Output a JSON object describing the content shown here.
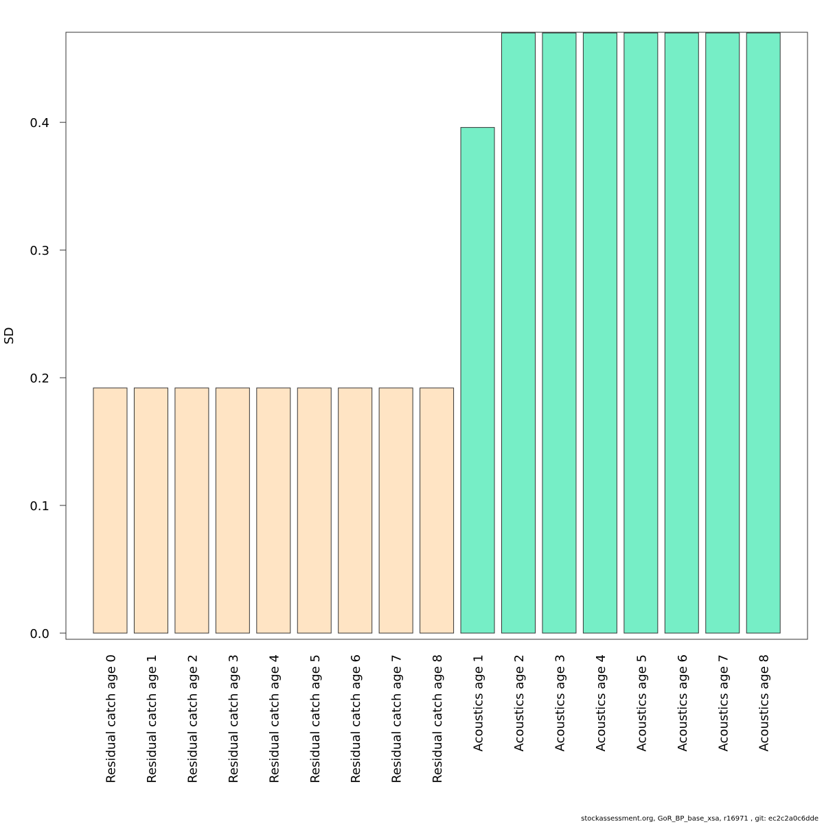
{
  "chart_data": {
    "type": "bar",
    "ylabel": "SD",
    "ylim": [
      0.0,
      0.47
    ],
    "yticks": [
      0.0,
      0.1,
      0.2,
      0.3,
      0.4
    ],
    "ytick_labels": [
      "0.0",
      "0.1",
      "0.2",
      "0.3",
      "0.4"
    ],
    "grid": false,
    "categories": [
      "Residual catch age 0",
      "Residual catch age 1",
      "Residual catch age 2",
      "Residual catch age 3",
      "Residual catch age 4",
      "Residual catch age 5",
      "Residual catch age 6",
      "Residual catch age 7",
      "Residual catch age 8",
      "Acoustics age 1",
      "Acoustics age 2",
      "Acoustics age 3",
      "Acoustics age 4",
      "Acoustics age 5",
      "Acoustics age 6",
      "Acoustics age 7",
      "Acoustics age 8"
    ],
    "values": [
      0.192,
      0.192,
      0.192,
      0.192,
      0.192,
      0.192,
      0.192,
      0.192,
      0.192,
      0.396,
      0.47,
      0.47,
      0.47,
      0.47,
      0.47,
      0.47,
      0.47
    ],
    "colors": [
      "#FFE4C4",
      "#FFE4C4",
      "#FFE4C4",
      "#FFE4C4",
      "#FFE4C4",
      "#FFE4C4",
      "#FFE4C4",
      "#FFE4C4",
      "#FFE4C4",
      "#76EEC6",
      "#76EEC6",
      "#76EEC6",
      "#76EEC6",
      "#76EEC6",
      "#76EEC6",
      "#76EEC6",
      "#76EEC6"
    ]
  },
  "footer": {
    "text": "stockassessment.org, GoR_BP_base_xsa, r16971 , git: ec2c2a0c6dde"
  }
}
